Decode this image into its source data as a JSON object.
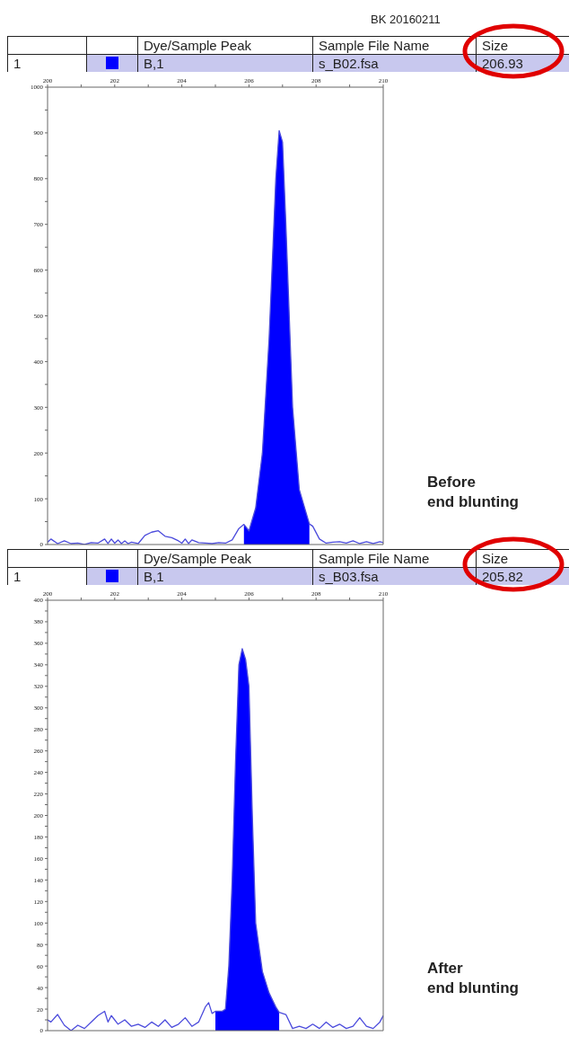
{
  "chart_data": [
    {
      "type": "line",
      "subtitle": "BK 20160211",
      "annotations": [
        "Dye/Sample Peak",
        "Sample File Name",
        "Size",
        "1",
        "B,1",
        "s_B02.fsa",
        "206.93",
        "Before\nend blunting"
      ],
      "xlim": [
        200,
        210
      ],
      "xticks": [
        200,
        {
          "value": 201,
          "label": null
        },
        202,
        {
          "value": 203,
          "label": null
        },
        204,
        {
          "value": 205,
          "label": null
        },
        206,
        {
          "value": 207,
          "label": null
        },
        208,
        {
          "value": 209,
          "label": null
        },
        210
      ],
      "ylim": [
        0,
        1000
      ],
      "yticks": [
        0,
        {
          "value": 50,
          "label": null
        },
        100,
        {
          "value": 150,
          "label": null
        },
        200,
        {
          "value": 250,
          "label": null
        },
        300,
        {
          "value": 350,
          "label": null
        },
        400,
        {
          "value": 450,
          "label": null
        },
        500,
        {
          "value": 550,
          "label": null
        },
        600,
        {
          "value": 650,
          "label": null
        },
        700,
        {
          "value": 750,
          "label": null
        },
        800,
        {
          "value": 850,
          "label": null
        },
        900,
        {
          "value": 950,
          "label": null
        },
        1000
      ],
      "series": [
        {
          "type": "line",
          "color": "#4b4bdc",
          "x": [
            200.0,
            200.1,
            200.3,
            200.5,
            200.7,
            200.9,
            201.1,
            201.3,
            201.5,
            201.7,
            201.8,
            201.9,
            202.0,
            202.1,
            202.2,
            202.3,
            202.4,
            202.5,
            202.7,
            202.9,
            203.1,
            203.3,
            203.5,
            203.7,
            203.9,
            204.0,
            204.1,
            204.2,
            204.3,
            204.5,
            204.7,
            204.9,
            205.1,
            205.3,
            205.5,
            205.7,
            205.85,
            206.0,
            206.2,
            206.4,
            206.6,
            206.8,
            206.9,
            207.0,
            207.1,
            207.3,
            207.5,
            207.7,
            207.8,
            207.9,
            208.1,
            208.3,
            208.5,
            208.7,
            208.9,
            209.1,
            209.3,
            209.5,
            209.7,
            209.9,
            210.0
          ],
          "values": [
            5,
            12,
            2,
            8,
            2,
            3,
            0,
            4,
            3,
            12,
            2,
            12,
            3,
            10,
            2,
            8,
            2,
            5,
            2,
            20,
            27,
            30,
            18,
            15,
            8,
            3,
            12,
            2,
            10,
            4,
            3,
            2,
            4,
            3,
            10,
            35,
            44,
            30,
            80,
            200,
            450,
            800,
            905,
            880,
            700,
            300,
            120,
            70,
            45,
            40,
            12,
            3,
            5,
            6,
            3,
            8,
            2,
            6,
            2,
            6,
            4
          ]
        },
        {
          "type": "area",
          "color": "#0000ff",
          "x": [
            205.85,
            206.0,
            206.2,
            206.4,
            206.6,
            206.8,
            206.9,
            207.0,
            207.1,
            207.3,
            207.5,
            207.7,
            207.8
          ],
          "values": [
            44,
            30,
            80,
            200,
            450,
            800,
            905,
            880,
            700,
            300,
            120,
            70,
            45
          ]
        }
      ]
    },
    {
      "type": "line",
      "annotations": [
        "Dye/Sample Peak",
        "Sample File Name",
        "Size",
        "1",
        "B,1",
        "s_B03.fsa",
        "205.82",
        "After\nend blunting"
      ],
      "xlim": [
        200,
        210
      ],
      "xticks": [
        200,
        {
          "value": 201,
          "label": null
        },
        202,
        {
          "value": 203,
          "label": null
        },
        204,
        {
          "value": 205,
          "label": null
        },
        206,
        {
          "value": 207,
          "label": null
        },
        208,
        {
          "value": 209,
          "label": null
        },
        210
      ],
      "ylim": [
        0,
        400
      ],
      "yticks": [
        0,
        {
          "value": 10,
          "label": null
        },
        20,
        {
          "value": 30,
          "label": null
        },
        40,
        {
          "value": 50,
          "label": null
        },
        60,
        {
          "value": 70,
          "label": null
        },
        80,
        {
          "value": 90,
          "label": null
        },
        100,
        {
          "value": 110,
          "label": null
        },
        120,
        {
          "value": 130,
          "label": null
        },
        140,
        {
          "value": 150,
          "label": null
        },
        160,
        {
          "value": 170,
          "label": null
        },
        180,
        {
          "value": 190,
          "label": null
        },
        200,
        {
          "value": 210,
          "label": null
        },
        220,
        {
          "value": 230,
          "label": null
        },
        240,
        {
          "value": 250,
          "label": null
        },
        260,
        {
          "value": 270,
          "label": null
        },
        280,
        {
          "value": 290,
          "label": null
        },
        300,
        {
          "value": 310,
          "label": null
        },
        320,
        {
          "value": 330,
          "label": null
        },
        340,
        {
          "value": 350,
          "label": null
        },
        360,
        {
          "value": 370,
          "label": null
        },
        380,
        {
          "value": 390,
          "label": null
        },
        400
      ],
      "series": [
        {
          "type": "line",
          "color": "#4b4bdc",
          "x": [
            200.0,
            200.1,
            200.3,
            200.5,
            200.7,
            200.9,
            201.1,
            201.3,
            201.5,
            201.7,
            201.8,
            201.9,
            202.1,
            202.3,
            202.5,
            202.7,
            202.9,
            203.1,
            203.3,
            203.5,
            203.7,
            203.9,
            204.1,
            204.3,
            204.5,
            204.7,
            204.8,
            204.9,
            205.0,
            205.2,
            205.3,
            205.4,
            205.5,
            205.6,
            205.7,
            205.8,
            205.9,
            206.0,
            206.1,
            206.2,
            206.4,
            206.6,
            206.8,
            206.9,
            207.1,
            207.3,
            207.5,
            207.7,
            207.9,
            208.1,
            208.3,
            208.5,
            208.7,
            208.9,
            209.1,
            209.3,
            209.5,
            209.7,
            209.9,
            210.0
          ],
          "values": [
            10,
            8,
            15,
            5,
            0,
            5,
            2,
            8,
            14,
            18,
            8,
            14,
            6,
            10,
            4,
            6,
            3,
            8,
            4,
            10,
            3,
            6,
            12,
            4,
            8,
            22,
            26,
            16,
            18,
            18,
            20,
            60,
            140,
            250,
            340,
            355,
            345,
            320,
            200,
            100,
            55,
            35,
            22,
            17,
            15,
            2,
            4,
            2,
            6,
            2,
            8,
            3,
            6,
            2,
            4,
            12,
            4,
            2,
            8,
            14
          ]
        },
        {
          "type": "area",
          "color": "#0000ff",
          "x": [
            205.0,
            205.2,
            205.3,
            205.4,
            205.5,
            205.6,
            205.7,
            205.8,
            205.9,
            206.0,
            206.1,
            206.2,
            206.4,
            206.6,
            206.8,
            206.9
          ],
          "values": [
            18,
            18,
            20,
            60,
            140,
            250,
            340,
            355,
            345,
            320,
            200,
            100,
            55,
            35,
            22,
            17
          ]
        }
      ]
    }
  ]
}
